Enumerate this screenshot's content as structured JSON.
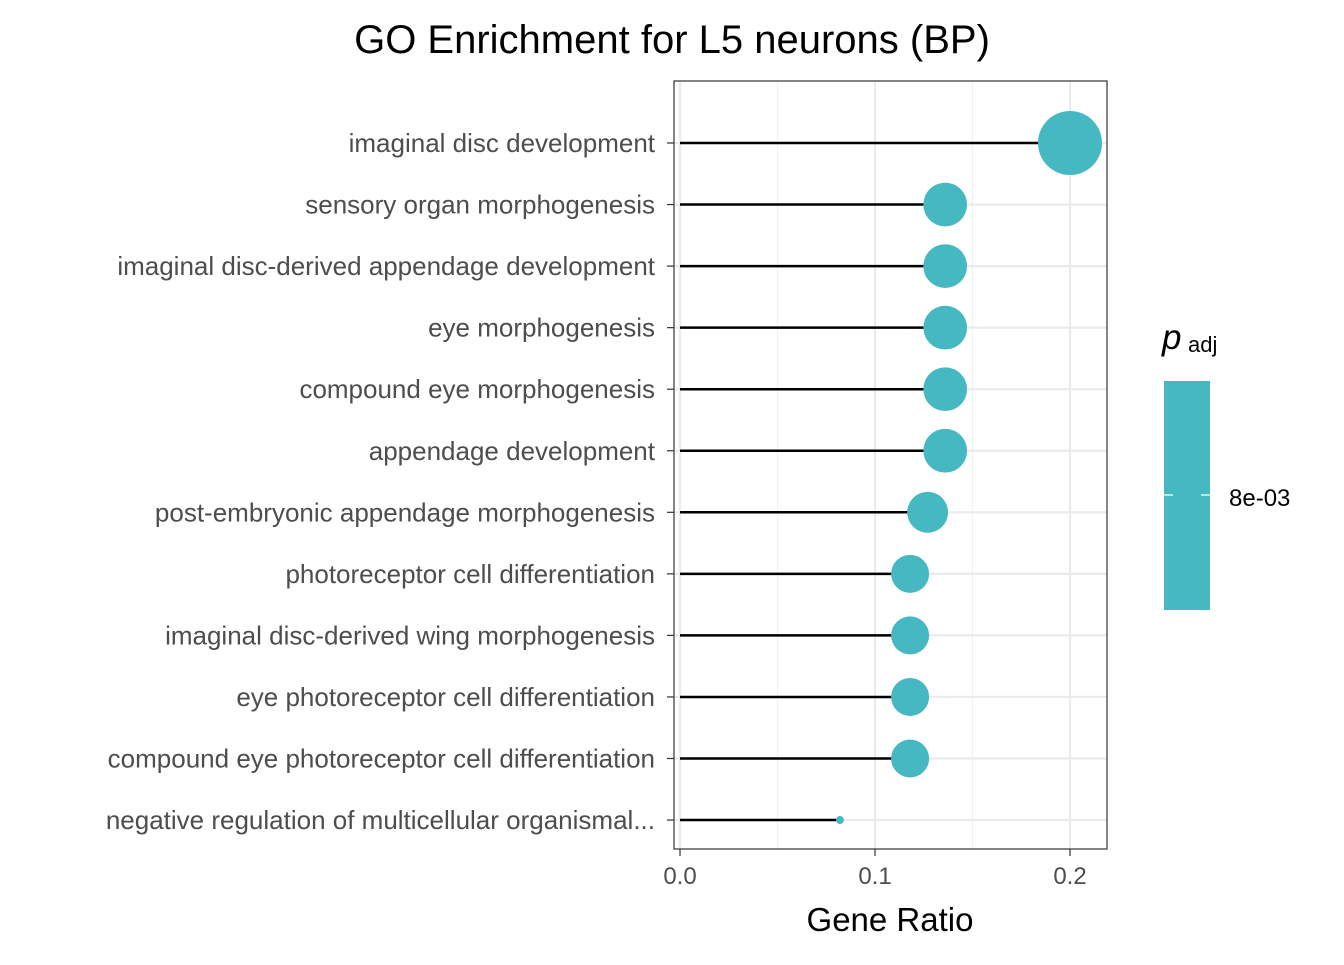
{
  "chart_data": {
    "type": "lollipop",
    "title": "GO Enrichment for L5 neurons (BP)",
    "xlabel": "Gene Ratio",
    "ylabel": "",
    "xlim": [
      -0.003,
      0.219
    ],
    "x_ticks": [
      0.0,
      0.1,
      0.2
    ],
    "x_tick_labels": [
      "0.0",
      "0.1",
      "0.2"
    ],
    "grid": true,
    "categories": [
      "imaginal disc development",
      "sensory organ morphogenesis",
      "imaginal disc-derived appendage development",
      "eye morphogenesis",
      "compound eye morphogenesis",
      "appendage development",
      "post-embryonic appendage morphogenesis",
      "photoreceptor cell differentiation",
      "imaginal disc-derived wing morphogenesis",
      "eye photoreceptor cell differentiation",
      "compound eye photoreceptor cell differentiation",
      "negative regulation of multicellular organismal..."
    ],
    "values": [
      0.2,
      0.136,
      0.136,
      0.136,
      0.136,
      0.136,
      0.127,
      0.118,
      0.118,
      0.118,
      0.118,
      0.082
    ],
    "color": "#46B8C2",
    "legend": {
      "title_main": "p",
      "title_sub": "adj",
      "labels": [
        "8e-03"
      ],
      "position": "right",
      "color": "#46B8C2"
    }
  }
}
